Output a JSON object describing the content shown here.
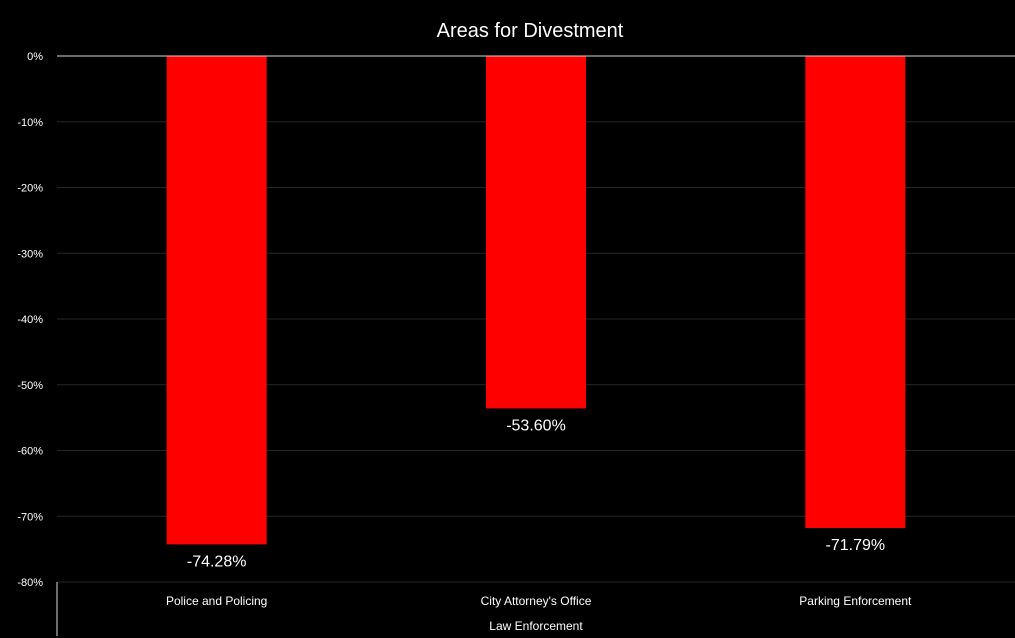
{
  "chart_data": {
    "type": "bar",
    "title": "Areas for Divestment",
    "categories": [
      "Police and Policing",
      "City Attorney's Office",
      "Parking Enforcement"
    ],
    "category_group": "Law Enforcement",
    "values": [
      -74.28,
      -53.6,
      -71.79
    ],
    "data_labels": [
      "-74.28%",
      "-53.60%",
      "-71.79%"
    ],
    "ylim": [
      -80,
      0
    ],
    "yticks": [
      0,
      -10,
      -20,
      -30,
      -40,
      -50,
      -60,
      -70,
      -80
    ],
    "ytick_labels": [
      "0%",
      "-10%",
      "-20%",
      "-30%",
      "-40%",
      "-50%",
      "-60%",
      "-70%",
      "-80%"
    ],
    "grid": true,
    "legend": "none",
    "colors": {
      "background": "#000000",
      "bar": "#ff0000",
      "text": "#ffffff",
      "gridline": "#262626",
      "axis": "#d9d9d9"
    }
  }
}
